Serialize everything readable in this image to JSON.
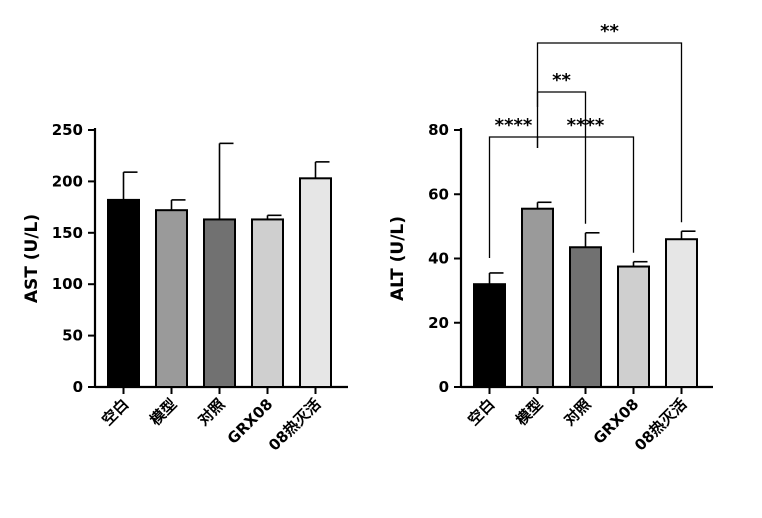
{
  "chart_data": [
    {
      "type": "bar",
      "ylabel": "AST (U/L)",
      "ylim": [
        0,
        250
      ],
      "yticks": [
        "0",
        "50",
        "100",
        "150",
        "200",
        "250"
      ],
      "categories": [
        "空白",
        "模型",
        "对照",
        "GRX08",
        "08热灭活"
      ],
      "values": [
        182,
        172,
        163,
        163,
        203
      ],
      "errors": [
        27,
        10,
        74,
        4,
        16
      ],
      "colors": [
        "#000000",
        "#9a9a9a",
        "#717171",
        "#cfcfcf",
        "#e6e6e6"
      ],
      "grid": false,
      "significance": []
    },
    {
      "type": "bar",
      "ylabel": "ALT (U/L)",
      "ylim": [
        0,
        80
      ],
      "yticks": [
        "0",
        "20",
        "40",
        "60",
        "80"
      ],
      "categories": [
        "空白",
        "模型",
        "对照",
        "GRX08",
        "08热灭活"
      ],
      "values": [
        32,
        55.5,
        43.5,
        37.5,
        46
      ],
      "errors": [
        3.5,
        2,
        4.5,
        1.5,
        2.5
      ],
      "colors": [
        "#000000",
        "#9a9a9a",
        "#717171",
        "#cfcfcf",
        "#e6e6e6"
      ],
      "grid": false,
      "significance": [
        {
          "from": 0,
          "to": 1,
          "label": "****"
        },
        {
          "from": 1,
          "to": 3,
          "label": "****"
        },
        {
          "from": 1,
          "to": 2,
          "label": "**"
        },
        {
          "from": 1,
          "to": 4,
          "label": "**"
        }
      ]
    }
  ]
}
